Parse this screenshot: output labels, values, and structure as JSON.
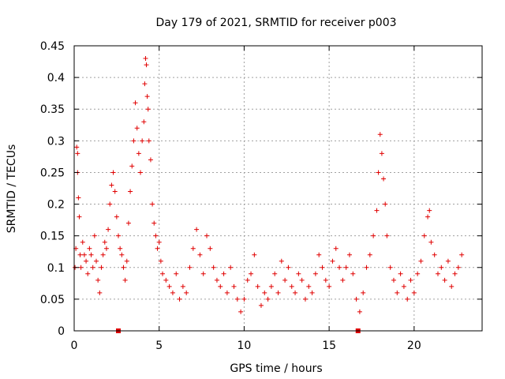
{
  "chart_data": {
    "type": "scatter",
    "title": "Day 179 of 2021, SRMTID for receiver p003",
    "xlabel": "GPS time / hours",
    "ylabel": "SRMTID / TECUs",
    "xlim": [
      0,
      24
    ],
    "ylim": [
      0,
      0.45
    ],
    "xticks": [
      0,
      5,
      10,
      15,
      20
    ],
    "xtick_labels": [
      "0",
      "5",
      "10",
      "15",
      "20"
    ],
    "yticks": [
      0,
      0.05,
      0.1,
      0.15,
      0.2,
      0.25,
      0.3,
      0.35,
      0.4,
      0.45
    ],
    "ytick_labels": [
      "0",
      "0.05",
      "0.1",
      "0.15",
      "0.2",
      "0.25",
      "0.3",
      "0.35",
      "0.4",
      "0.45"
    ],
    "grid": true,
    "marker": "+",
    "marker_color": "#e00000",
    "series": [
      {
        "name": "SRMTID p003",
        "points": [
          [
            0.05,
            0.1
          ],
          [
            0.1,
            0.13
          ],
          [
            0.15,
            0.29
          ],
          [
            0.2,
            0.28
          ],
          [
            0.2,
            0.25
          ],
          [
            0.25,
            0.21
          ],
          [
            0.3,
            0.18
          ],
          [
            0.35,
            0.12
          ],
          [
            0.4,
            0.1
          ],
          [
            0.5,
            0.14
          ],
          [
            0.6,
            0.12
          ],
          [
            0.7,
            0.11
          ],
          [
            0.8,
            0.09
          ],
          [
            0.9,
            0.13
          ],
          [
            1.0,
            0.12
          ],
          [
            1.1,
            0.1
          ],
          [
            1.2,
            0.15
          ],
          [
            1.3,
            0.11
          ],
          [
            1.4,
            0.08
          ],
          [
            1.5,
            0.06
          ],
          [
            1.6,
            0.1
          ],
          [
            1.7,
            0.12
          ],
          [
            1.8,
            0.14
          ],
          [
            1.9,
            0.13
          ],
          [
            2.0,
            0.16
          ],
          [
            2.1,
            0.2
          ],
          [
            2.2,
            0.23
          ],
          [
            2.3,
            0.25
          ],
          [
            2.4,
            0.22
          ],
          [
            2.5,
            0.18
          ],
          [
            2.6,
            0.15
          ],
          [
            2.7,
            0.13
          ],
          [
            2.8,
            0.12
          ],
          [
            2.9,
            0.1
          ],
          [
            3.0,
            0.08
          ],
          [
            3.1,
            0.11
          ],
          [
            3.2,
            0.17
          ],
          [
            3.3,
            0.22
          ],
          [
            3.4,
            0.26
          ],
          [
            3.5,
            0.3
          ],
          [
            3.6,
            0.36
          ],
          [
            3.7,
            0.32
          ],
          [
            3.8,
            0.28
          ],
          [
            3.9,
            0.25
          ],
          [
            4.0,
            0.3
          ],
          [
            4.1,
            0.33
          ],
          [
            4.15,
            0.39
          ],
          [
            4.2,
            0.43
          ],
          [
            4.25,
            0.42
          ],
          [
            4.3,
            0.37
          ],
          [
            4.35,
            0.35
          ],
          [
            4.4,
            0.3
          ],
          [
            4.5,
            0.27
          ],
          [
            4.6,
            0.2
          ],
          [
            4.7,
            0.17
          ],
          [
            4.8,
            0.15
          ],
          [
            4.9,
            0.13
          ],
          [
            5.0,
            0.14
          ],
          [
            5.1,
            0.11
          ],
          [
            5.2,
            0.09
          ],
          [
            5.4,
            0.08
          ],
          [
            5.6,
            0.07
          ],
          [
            5.8,
            0.06
          ],
          [
            6.0,
            0.09
          ],
          [
            6.2,
            0.05
          ],
          [
            6.4,
            0.07
          ],
          [
            6.6,
            0.06
          ],
          [
            6.8,
            0.1
          ],
          [
            7.0,
            0.13
          ],
          [
            7.2,
            0.16
          ],
          [
            7.4,
            0.12
          ],
          [
            7.6,
            0.09
          ],
          [
            7.8,
            0.15
          ],
          [
            8.0,
            0.13
          ],
          [
            8.2,
            0.1
          ],
          [
            8.4,
            0.08
          ],
          [
            8.6,
            0.07
          ],
          [
            8.8,
            0.09
          ],
          [
            9.0,
            0.06
          ],
          [
            9.2,
            0.1
          ],
          [
            9.4,
            0.07
          ],
          [
            9.6,
            0.05
          ],
          [
            9.8,
            0.03
          ],
          [
            10.0,
            0.05
          ],
          [
            10.2,
            0.08
          ],
          [
            10.4,
            0.09
          ],
          [
            10.6,
            0.12
          ],
          [
            10.8,
            0.07
          ],
          [
            11.0,
            0.04
          ],
          [
            11.2,
            0.06
          ],
          [
            11.4,
            0.05
          ],
          [
            11.6,
            0.07
          ],
          [
            11.8,
            0.09
          ],
          [
            12.0,
            0.06
          ],
          [
            12.2,
            0.11
          ],
          [
            12.4,
            0.08
          ],
          [
            12.6,
            0.1
          ],
          [
            12.8,
            0.07
          ],
          [
            13.0,
            0.06
          ],
          [
            13.2,
            0.09
          ],
          [
            13.4,
            0.08
          ],
          [
            13.6,
            0.05
          ],
          [
            13.8,
            0.07
          ],
          [
            14.0,
            0.06
          ],
          [
            14.2,
            0.09
          ],
          [
            14.4,
            0.12
          ],
          [
            14.6,
            0.1
          ],
          [
            14.8,
            0.08
          ],
          [
            15.0,
            0.07
          ],
          [
            15.2,
            0.11
          ],
          [
            15.4,
            0.13
          ],
          [
            15.6,
            0.1
          ],
          [
            15.8,
            0.08
          ],
          [
            16.0,
            0.1
          ],
          [
            16.2,
            0.12
          ],
          [
            16.4,
            0.09
          ],
          [
            16.6,
            0.05
          ],
          [
            16.8,
            0.03
          ],
          [
            17.0,
            0.06
          ],
          [
            17.2,
            0.1
          ],
          [
            17.4,
            0.12
          ],
          [
            17.6,
            0.15
          ],
          [
            17.8,
            0.19
          ],
          [
            17.9,
            0.25
          ],
          [
            18.0,
            0.31
          ],
          [
            18.1,
            0.28
          ],
          [
            18.2,
            0.24
          ],
          [
            18.3,
            0.2
          ],
          [
            18.4,
            0.15
          ],
          [
            18.6,
            0.1
          ],
          [
            18.8,
            0.08
          ],
          [
            19.0,
            0.06
          ],
          [
            19.2,
            0.09
          ],
          [
            19.4,
            0.07
          ],
          [
            19.6,
            0.05
          ],
          [
            19.8,
            0.08
          ],
          [
            20.0,
            0.06
          ],
          [
            20.2,
            0.09
          ],
          [
            20.4,
            0.11
          ],
          [
            20.6,
            0.15
          ],
          [
            20.8,
            0.18
          ],
          [
            20.9,
            0.19
          ],
          [
            21.0,
            0.14
          ],
          [
            21.2,
            0.12
          ],
          [
            21.4,
            0.09
          ],
          [
            21.6,
            0.1
          ],
          [
            21.8,
            0.08
          ],
          [
            22.0,
            0.11
          ],
          [
            22.2,
            0.07
          ],
          [
            22.4,
            0.09
          ],
          [
            22.6,
            0.1
          ],
          [
            22.8,
            0.12
          ]
        ]
      }
    ],
    "gap_markers": [
      2.6,
      16.7
    ]
  }
}
